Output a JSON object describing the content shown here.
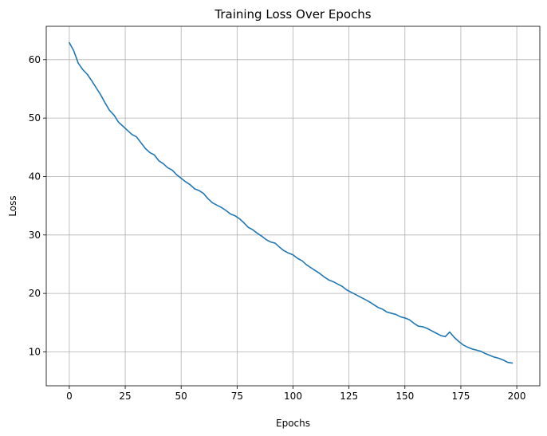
{
  "chart_data": {
    "type": "line",
    "title": "Training Loss Over Epochs",
    "xlabel": "Epochs",
    "ylabel": "Loss",
    "xlim": [
      -10.3,
      210.3
    ],
    "ylim": [
      4.2,
      65.7
    ],
    "xticks": [
      0,
      25,
      50,
      75,
      100,
      125,
      150,
      175,
      200
    ],
    "yticks": [
      10,
      20,
      30,
      40,
      50,
      60
    ],
    "grid": true,
    "series": [
      {
        "color": "#1f77b4",
        "x": [
          0,
          2,
          4,
          6,
          8,
          10,
          12,
          14,
          16,
          18,
          20,
          22,
          24,
          26,
          28,
          30,
          32,
          34,
          36,
          38,
          40,
          42,
          44,
          46,
          48,
          50,
          52,
          54,
          56,
          58,
          60,
          62,
          64,
          66,
          68,
          70,
          72,
          74,
          76,
          78,
          80,
          82,
          84,
          86,
          88,
          90,
          92,
          94,
          96,
          98,
          100,
          102,
          104,
          106,
          108,
          110,
          112,
          114,
          116,
          118,
          120,
          122,
          124,
          126,
          128,
          130,
          132,
          134,
          136,
          138,
          140,
          142,
          144,
          146,
          148,
          150,
          152,
          154,
          156,
          158,
          160,
          162,
          164,
          166,
          168,
          170,
          172,
          174,
          176,
          178,
          180,
          182,
          184,
          186,
          188,
          190,
          192,
          194,
          196,
          198
        ],
        "y": [
          62.9,
          61.5,
          59.4,
          58.3,
          57.5,
          56.4,
          55.2,
          54.0,
          52.6,
          51.3,
          50.5,
          49.3,
          48.6,
          47.9,
          47.2,
          46.8,
          45.8,
          44.8,
          44.1,
          43.7,
          42.7,
          42.2,
          41.5,
          41.1,
          40.3,
          39.7,
          39.1,
          38.6,
          37.9,
          37.6,
          37.1,
          36.2,
          35.5,
          35.1,
          34.7,
          34.2,
          33.6,
          33.3,
          32.8,
          32.1,
          31.3,
          30.9,
          30.3,
          29.8,
          29.2,
          28.8,
          28.6,
          27.9,
          27.3,
          26.9,
          26.6,
          26.0,
          25.6,
          24.9,
          24.4,
          23.9,
          23.4,
          22.8,
          22.3,
          22.0,
          21.6,
          21.2,
          20.6,
          20.2,
          19.8,
          19.4,
          19.0,
          18.6,
          18.1,
          17.6,
          17.3,
          16.8,
          16.6,
          16.4,
          16.0,
          15.8,
          15.5,
          14.9,
          14.4,
          14.3,
          14.0,
          13.6,
          13.2,
          12.8,
          12.6,
          13.4,
          12.5,
          11.8,
          11.2,
          10.8,
          10.5,
          10.3,
          10.1,
          9.7,
          9.4,
          9.1,
          8.9,
          8.6,
          8.2,
          8.1
        ]
      }
    ]
  }
}
